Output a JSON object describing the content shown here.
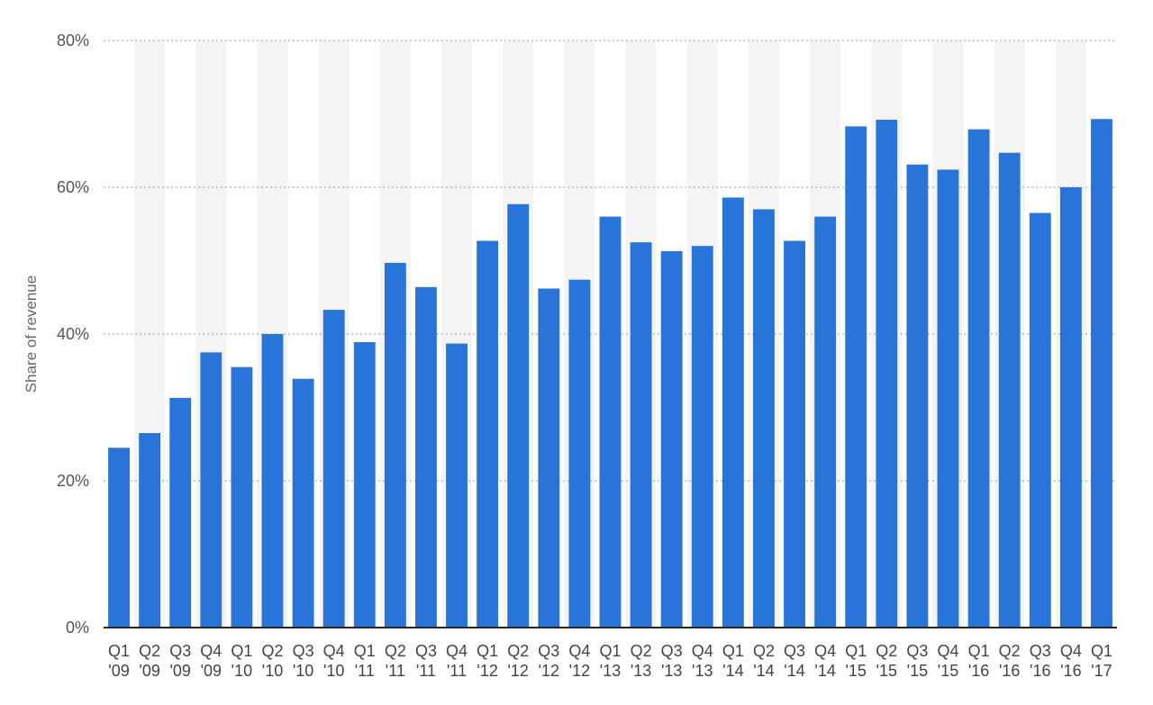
{
  "chart_data": {
    "type": "bar",
    "title": "",
    "xlabel": "",
    "ylabel": "Share of revenue",
    "ylim": [
      0,
      80
    ],
    "yticks": [
      0,
      20,
      40,
      60,
      80
    ],
    "ytick_labels": [
      "0%",
      "20%",
      "40%",
      "60%",
      "80%"
    ],
    "grid": true,
    "bar_color": "#2874d9",
    "band_color": "#f4f4f4",
    "categories": [
      [
        "Q1",
        "'09"
      ],
      [
        "Q2",
        "'09"
      ],
      [
        "Q3",
        "'09"
      ],
      [
        "Q4",
        "'09"
      ],
      [
        "Q1",
        "'10"
      ],
      [
        "Q2",
        "'10"
      ],
      [
        "Q3",
        "'10"
      ],
      [
        "Q4",
        "'10"
      ],
      [
        "Q1",
        "'11"
      ],
      [
        "Q2",
        "'11"
      ],
      [
        "Q3",
        "'11"
      ],
      [
        "Q4",
        "'11"
      ],
      [
        "Q1",
        "'12"
      ],
      [
        "Q2",
        "'12"
      ],
      [
        "Q3",
        "'12"
      ],
      [
        "Q4",
        "'12"
      ],
      [
        "Q1",
        "'13"
      ],
      [
        "Q2",
        "'13"
      ],
      [
        "Q3",
        "'13"
      ],
      [
        "Q4",
        "'13"
      ],
      [
        "Q1",
        "'14"
      ],
      [
        "Q2",
        "'14"
      ],
      [
        "Q3",
        "'14"
      ],
      [
        "Q4",
        "'14"
      ],
      [
        "Q1",
        "'15"
      ],
      [
        "Q2",
        "'15"
      ],
      [
        "Q3",
        "'15"
      ],
      [
        "Q4",
        "'15"
      ],
      [
        "Q1",
        "'16"
      ],
      [
        "Q2",
        "'16"
      ],
      [
        "Q3",
        "'16"
      ],
      [
        "Q4",
        "'16"
      ],
      [
        "Q1",
        "'17"
      ]
    ],
    "values": [
      24.5,
      26.5,
      31.3,
      37.5,
      35.5,
      40.0,
      33.9,
      43.3,
      38.9,
      49.7,
      46.4,
      38.7,
      52.7,
      57.7,
      46.2,
      47.4,
      56.0,
      52.5,
      51.3,
      52.0,
      58.6,
      57.0,
      52.7,
      56.0,
      68.3,
      69.2,
      63.1,
      62.4,
      67.9,
      64.7,
      56.5,
      60.0,
      69.3
    ]
  }
}
